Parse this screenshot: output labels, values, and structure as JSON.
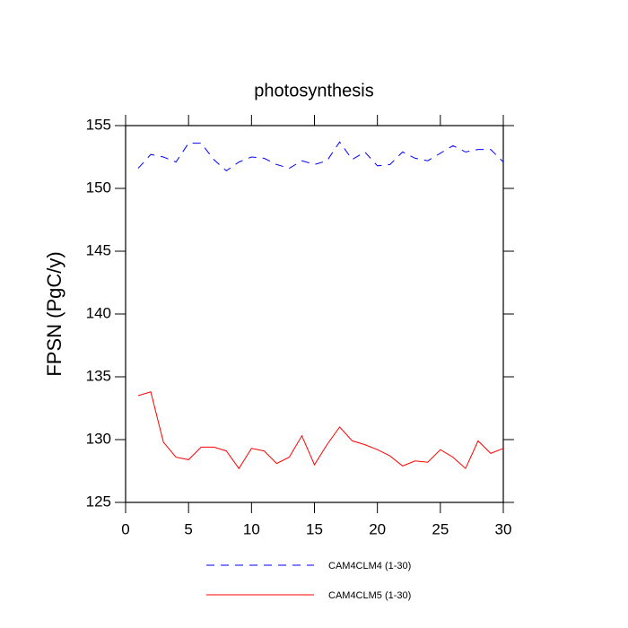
{
  "chart_data": {
    "type": "line",
    "title": "photosynthesis",
    "y_label": "FPSN  (PgC/y)",
    "x": [
      1,
      2,
      3,
      4,
      5,
      6,
      7,
      8,
      9,
      10,
      11,
      12,
      13,
      14,
      15,
      16,
      17,
      18,
      19,
      20,
      21,
      22,
      23,
      24,
      25,
      26,
      27,
      28,
      29,
      30
    ],
    "series": [
      {
        "name": "CAM4CLM4 (1-30)",
        "color": "#0000ff",
        "dashed": true,
        "values": [
          151.6,
          152.7,
          152.5,
          152.1,
          153.6,
          153.6,
          152.3,
          151.4,
          152.1,
          152.5,
          152.4,
          151.9,
          151.6,
          152.2,
          151.9,
          152.2,
          153.7,
          152.3,
          152.9,
          151.8,
          151.9,
          152.9,
          152.4,
          152.2,
          152.8,
          153.4,
          152.9,
          153.1,
          153.1,
          152.1
        ]
      },
      {
        "name": "CAM4CLM5 (1-30)",
        "color": "#ff0000",
        "dashed": false,
        "values": [
          133.5,
          133.8,
          129.8,
          128.6,
          128.4,
          129.4,
          129.4,
          129.1,
          127.7,
          129.3,
          129.1,
          128.1,
          128.6,
          130.3,
          128.0,
          129.6,
          131.0,
          129.9,
          129.6,
          129.2,
          128.7,
          127.9,
          128.3,
          128.2,
          129.2,
          128.6,
          127.7,
          129.9,
          128.9,
          129.3
        ]
      }
    ],
    "xlim": [
      0,
      30
    ],
    "xticks": [
      0,
      5,
      10,
      15,
      20,
      25,
      30
    ],
    "ylim": [
      125,
      155
    ],
    "yticks": [
      125,
      130,
      135,
      140,
      145,
      150,
      155
    ],
    "grid": false
  }
}
